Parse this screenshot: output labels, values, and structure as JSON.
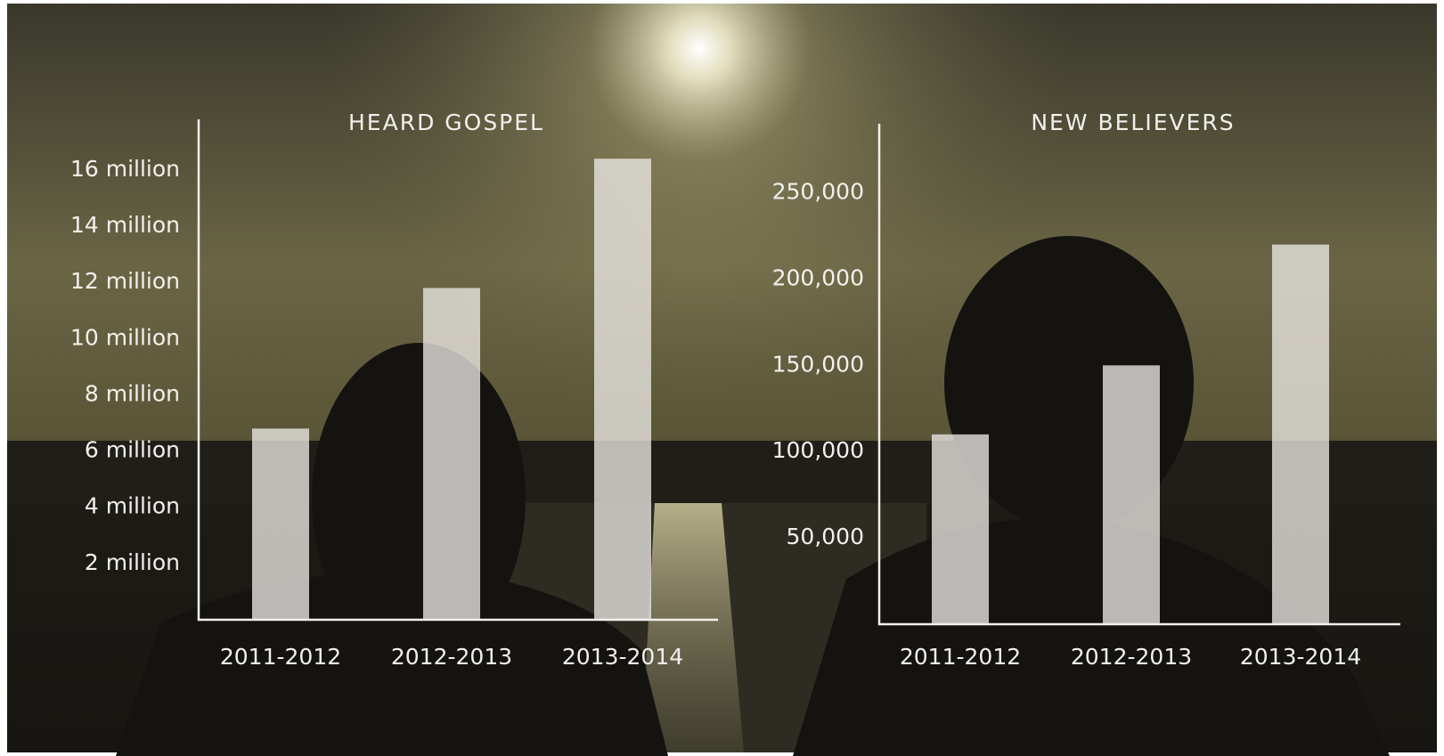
{
  "chart_data": [
    {
      "type": "bar",
      "title": "HEARD GOSPEL",
      "categories": [
        "2011-2012",
        "2012-2013",
        "2013-2014"
      ],
      "values": [
        6800000,
        11800000,
        16400000
      ],
      "color": "#ebe8e4",
      "ylim": [
        0,
        17800000
      ],
      "yticks": [
        {
          "value": 2000000,
          "label": "2 million"
        },
        {
          "value": 4000000,
          "label": "4 million"
        },
        {
          "value": 6000000,
          "label": "6 million"
        },
        {
          "value": 8000000,
          "label": "8 million"
        },
        {
          "value": 10000000,
          "label": "10 million"
        },
        {
          "value": 12000000,
          "label": "12 million"
        },
        {
          "value": 14000000,
          "label": "14 million"
        },
        {
          "value": 16000000,
          "label": "16 million"
        }
      ]
    },
    {
      "type": "bar",
      "title": "NEW BELIEVERS",
      "categories": [
        "2011-2012",
        "2012-2013",
        "2013-2014"
      ],
      "values": [
        110000,
        150000,
        220000
      ],
      "color": "#ebe8e4",
      "ylim": [
        0,
        290000
      ],
      "yticks": [
        {
          "value": 50000,
          "label": "50,000"
        },
        {
          "value": 100000,
          "label": "100,000"
        },
        {
          "value": 150000,
          "label": "150,000"
        },
        {
          "value": 200000,
          "label": "200,000"
        },
        {
          "value": 250000,
          "label": "250,000"
        }
      ]
    }
  ]
}
